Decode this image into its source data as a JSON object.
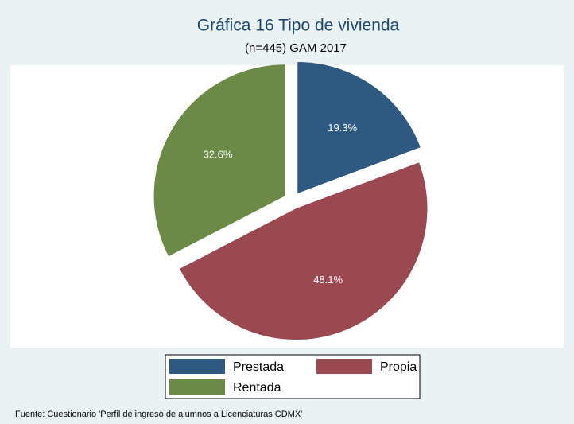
{
  "chart_data": {
    "type": "pie",
    "title": "Gráfica 16 Tipo de vivienda",
    "subtitle": "(n=445) GAM 2017",
    "note": "Fuente: Cuestionario 'Perfil de ingreso de alumnos a Licenciaturas CDMX'",
    "categories": [
      "Prestada",
      "Propia",
      "Rentada"
    ],
    "values": [
      19.3,
      48.1,
      32.6
    ],
    "value_labels": [
      "19.3%",
      "48.1%",
      "32.6%"
    ],
    "colors": [
      "#2e5a82",
      "#9a4950",
      "#6a8a45"
    ],
    "explode": true,
    "legend": "bottom"
  }
}
